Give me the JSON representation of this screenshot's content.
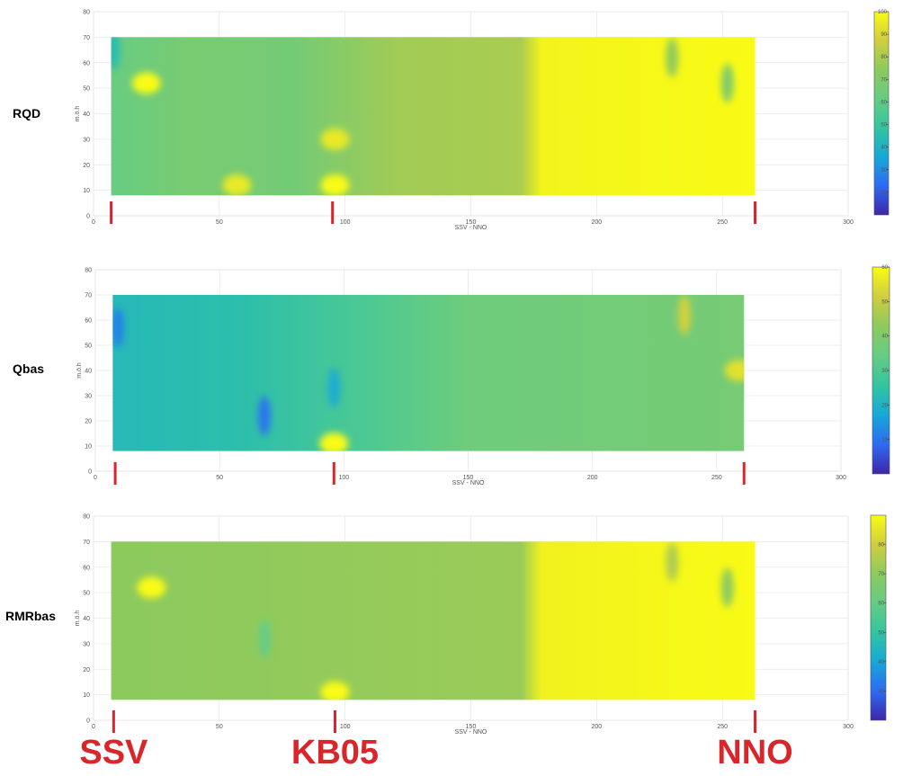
{
  "chart_data": [
    {
      "type": "heatmap",
      "title": "RQD",
      "xlabel": "SSV - NNO",
      "ylabel": "m.ö.h",
      "xlim": [
        0,
        300
      ],
      "ylim": [
        0,
        80
      ],
      "xticks": [
        0,
        50,
        100,
        150,
        200,
        250,
        300
      ],
      "yticks": [
        0,
        10,
        20,
        30,
        40,
        50,
        60,
        70,
        80
      ],
      "data_extent": {
        "x": [
          7,
          263
        ],
        "y": [
          8,
          70
        ]
      },
      "colorbar": {
        "ticks": [
          20,
          30,
          40,
          50,
          60,
          70,
          80,
          90,
          100
        ],
        "range": [
          10,
          100
        ]
      },
      "color_profile": [
        {
          "x": 7,
          "value": 62
        },
        {
          "x": 40,
          "value": 68
        },
        {
          "x": 80,
          "value": 66
        },
        {
          "x": 120,
          "value": 78
        },
        {
          "x": 170,
          "value": 80
        },
        {
          "x": 178,
          "value": 98
        },
        {
          "x": 263,
          "value": 100
        }
      ],
      "features": [
        {
          "x": 8,
          "y": 65,
          "value": 45
        },
        {
          "x": 21,
          "y": 52,
          "value": 100
        },
        {
          "x": 57,
          "y": 12,
          "value": 95
        },
        {
          "x": 96,
          "y": 12,
          "value": 100
        },
        {
          "x": 96,
          "y": 30,
          "value": 95
        },
        {
          "x": 230,
          "y": 62,
          "value": 75
        },
        {
          "x": 252,
          "y": 52,
          "value": 70
        }
      ],
      "markers": [
        7,
        95,
        263
      ]
    },
    {
      "type": "heatmap",
      "title": "Qbas",
      "xlabel": "SSV - NNÖ",
      "ylabel": "m.ö.h",
      "xlim": [
        0,
        300
      ],
      "ylim": [
        0,
        80
      ],
      "xticks": [
        0,
        50,
        100,
        150,
        200,
        250,
        300
      ],
      "yticks": [
        0,
        10,
        20,
        30,
        40,
        50,
        60,
        70,
        80
      ],
      "data_extent": {
        "x": [
          7,
          261
        ],
        "y": [
          8,
          70
        ]
      },
      "colorbar": {
        "ticks": [
          10,
          20,
          30,
          40,
          50,
          60
        ],
        "range": [
          0,
          60
        ]
      },
      "color_profile": [
        {
          "x": 7,
          "value": 22
        },
        {
          "x": 60,
          "value": 24
        },
        {
          "x": 110,
          "value": 30
        },
        {
          "x": 150,
          "value": 36
        },
        {
          "x": 261,
          "value": 38
        }
      ],
      "features": [
        {
          "x": 9,
          "y": 57,
          "value": 12
        },
        {
          "x": 68,
          "y": 22,
          "value": 10
        },
        {
          "x": 96,
          "y": 33,
          "value": 18
        },
        {
          "x": 96,
          "y": 11,
          "value": 60
        },
        {
          "x": 237,
          "y": 62,
          "value": 52
        },
        {
          "x": 259,
          "y": 40,
          "value": 55
        }
      ],
      "markers": [
        8,
        96,
        261
      ]
    },
    {
      "type": "heatmap",
      "title": "RMRbas",
      "xlabel": "SSV - NNÖ",
      "ylabel": "m.ö.h",
      "xlim": [
        0,
        300
      ],
      "ylim": [
        0,
        80
      ],
      "xticks": [
        0,
        50,
        100,
        150,
        200,
        250,
        300
      ],
      "yticks": [
        0,
        10,
        20,
        30,
        40,
        50,
        60,
        70,
        80
      ],
      "data_extent": {
        "x": [
          7,
          263
        ],
        "y": [
          8,
          70
        ]
      },
      "colorbar": {
        "ticks": [
          30,
          40,
          50,
          60,
          70,
          80
        ],
        "range": [
          20,
          90
        ]
      },
      "color_profile": [
        {
          "x": 7,
          "value": 70
        },
        {
          "x": 170,
          "value": 72
        },
        {
          "x": 178,
          "value": 88
        },
        {
          "x": 263,
          "value": 90
        }
      ],
      "features": [
        {
          "x": 23,
          "y": 52,
          "value": 90
        },
        {
          "x": 68,
          "y": 32,
          "value": 60
        },
        {
          "x": 96,
          "y": 11,
          "value": 90
        },
        {
          "x": 230,
          "y": 62,
          "value": 75
        },
        {
          "x": 252,
          "y": 52,
          "value": 70
        }
      ],
      "markers": [
        8,
        96,
        263
      ]
    }
  ],
  "labels": {
    "rows": [
      "RQD",
      "Qbas",
      "RMRbas"
    ],
    "bottom": [
      {
        "text": "SSV",
        "x": 8
      },
      {
        "text": "KB05",
        "x": 96
      },
      {
        "text": "NNO",
        "x": 263
      }
    ]
  },
  "colors": {
    "marker": "#d9262b",
    "grid": "#e8e8e8",
    "axis": "#888888",
    "colormap": [
      "#3e26a8",
      "#2d6bf3",
      "#17a8d7",
      "#33c5a0",
      "#66cc84",
      "#8cca5e",
      "#d0ce40",
      "#f9fb15"
    ]
  }
}
